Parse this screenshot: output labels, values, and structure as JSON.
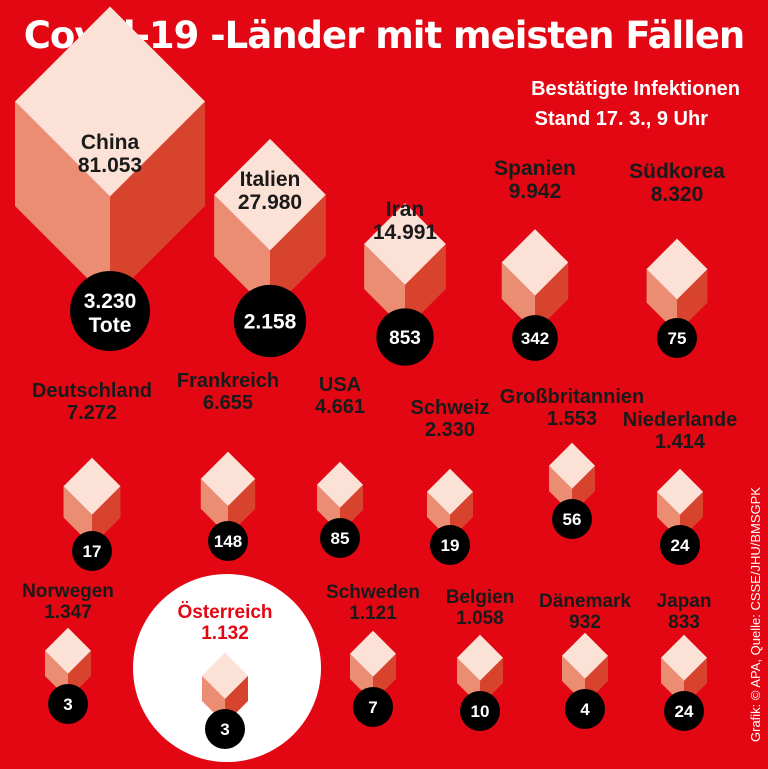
{
  "title": "Covid-19 -Länder mit meisten Fällen",
  "subtitle_line1": "Bestätigte Infektionen",
  "subtitle_line2": "Stand 17. 3., 9 Uhr",
  "credit": "Grafik: © APA, Quelle: CSSE/JHU/BMSGPK",
  "colors": {
    "background": "#e30613",
    "cube_top": "#fbe1d6",
    "cube_left": "#ea8d73",
    "cube_right": "#d7432d",
    "dark_circle": "#000000",
    "highlight_circle": "#ffffff",
    "label_text": "#1a1a1a",
    "highlight_text": "#e30613"
  },
  "chart_data": {
    "type": "cube-bubble",
    "series": [
      {
        "name": "Bestätigte Infektionen",
        "values": [
          81053,
          27980,
          14991,
          9942,
          8320,
          7272,
          6655,
          4661,
          2330,
          1553,
          1414,
          1347,
          1132,
          1121,
          1058,
          932,
          833
        ]
      },
      {
        "name": "Tote",
        "values": [
          3230,
          2158,
          853,
          342,
          75,
          17,
          148,
          85,
          19,
          56,
          24,
          3,
          3,
          7,
          10,
          4,
          24
        ]
      }
    ],
    "highlight": "Österreich",
    "countries": [
      {
        "name": "China",
        "cases": "81.053",
        "deaths": "3.230",
        "deaths_unit": "Tote",
        "cases_value": 81053,
        "deaths_value": 3230
      },
      {
        "name": "Italien",
        "cases": "27.980",
        "deaths": "2.158",
        "cases_value": 27980,
        "deaths_value": 2158
      },
      {
        "name": "Iran",
        "cases": "14.991",
        "deaths": "853",
        "cases_value": 14991,
        "deaths_value": 853
      },
      {
        "name": "Spanien",
        "cases": "9.942",
        "deaths": "342",
        "cases_value": 9942,
        "deaths_value": 342
      },
      {
        "name": "Südkorea",
        "cases": "8.320",
        "deaths": "75",
        "cases_value": 8320,
        "deaths_value": 75
      },
      {
        "name": "Deutschland",
        "cases": "7.272",
        "deaths": "17",
        "cases_value": 7272,
        "deaths_value": 17
      },
      {
        "name": "Frankreich",
        "cases": "6.655",
        "deaths": "148",
        "cases_value": 6655,
        "deaths_value": 148
      },
      {
        "name": "USA",
        "cases": "4.661",
        "deaths": "85",
        "cases_value": 4661,
        "deaths_value": 85
      },
      {
        "name": "Schweiz",
        "cases": "2.330",
        "deaths": "19",
        "cases_value": 2330,
        "deaths_value": 19
      },
      {
        "name": "Großbritannien",
        "cases": "1.553",
        "deaths": "56",
        "cases_value": 1553,
        "deaths_value": 56
      },
      {
        "name": "Niederlande",
        "cases": "1.414",
        "deaths": "24",
        "cases_value": 1414,
        "deaths_value": 24
      },
      {
        "name": "Norwegen",
        "cases": "1.347",
        "deaths": "3",
        "cases_value": 1347,
        "deaths_value": 3
      },
      {
        "name": "Österreich",
        "cases": "1.132",
        "deaths": "3",
        "cases_value": 1132,
        "deaths_value": 3
      },
      {
        "name": "Schweden",
        "cases": "1.121",
        "deaths": "7",
        "cases_value": 1121,
        "deaths_value": 7
      },
      {
        "name": "Belgien",
        "cases": "1.058",
        "deaths": "10",
        "cases_value": 1058,
        "deaths_value": 10
      },
      {
        "name": "Dänemark",
        "cases": "932",
        "deaths": "4",
        "cases_value": 932,
        "deaths_value": 4
      },
      {
        "name": "Japan",
        "cases": "833",
        "deaths": "24",
        "cases_value": 833,
        "deaths_value": 24
      }
    ]
  }
}
